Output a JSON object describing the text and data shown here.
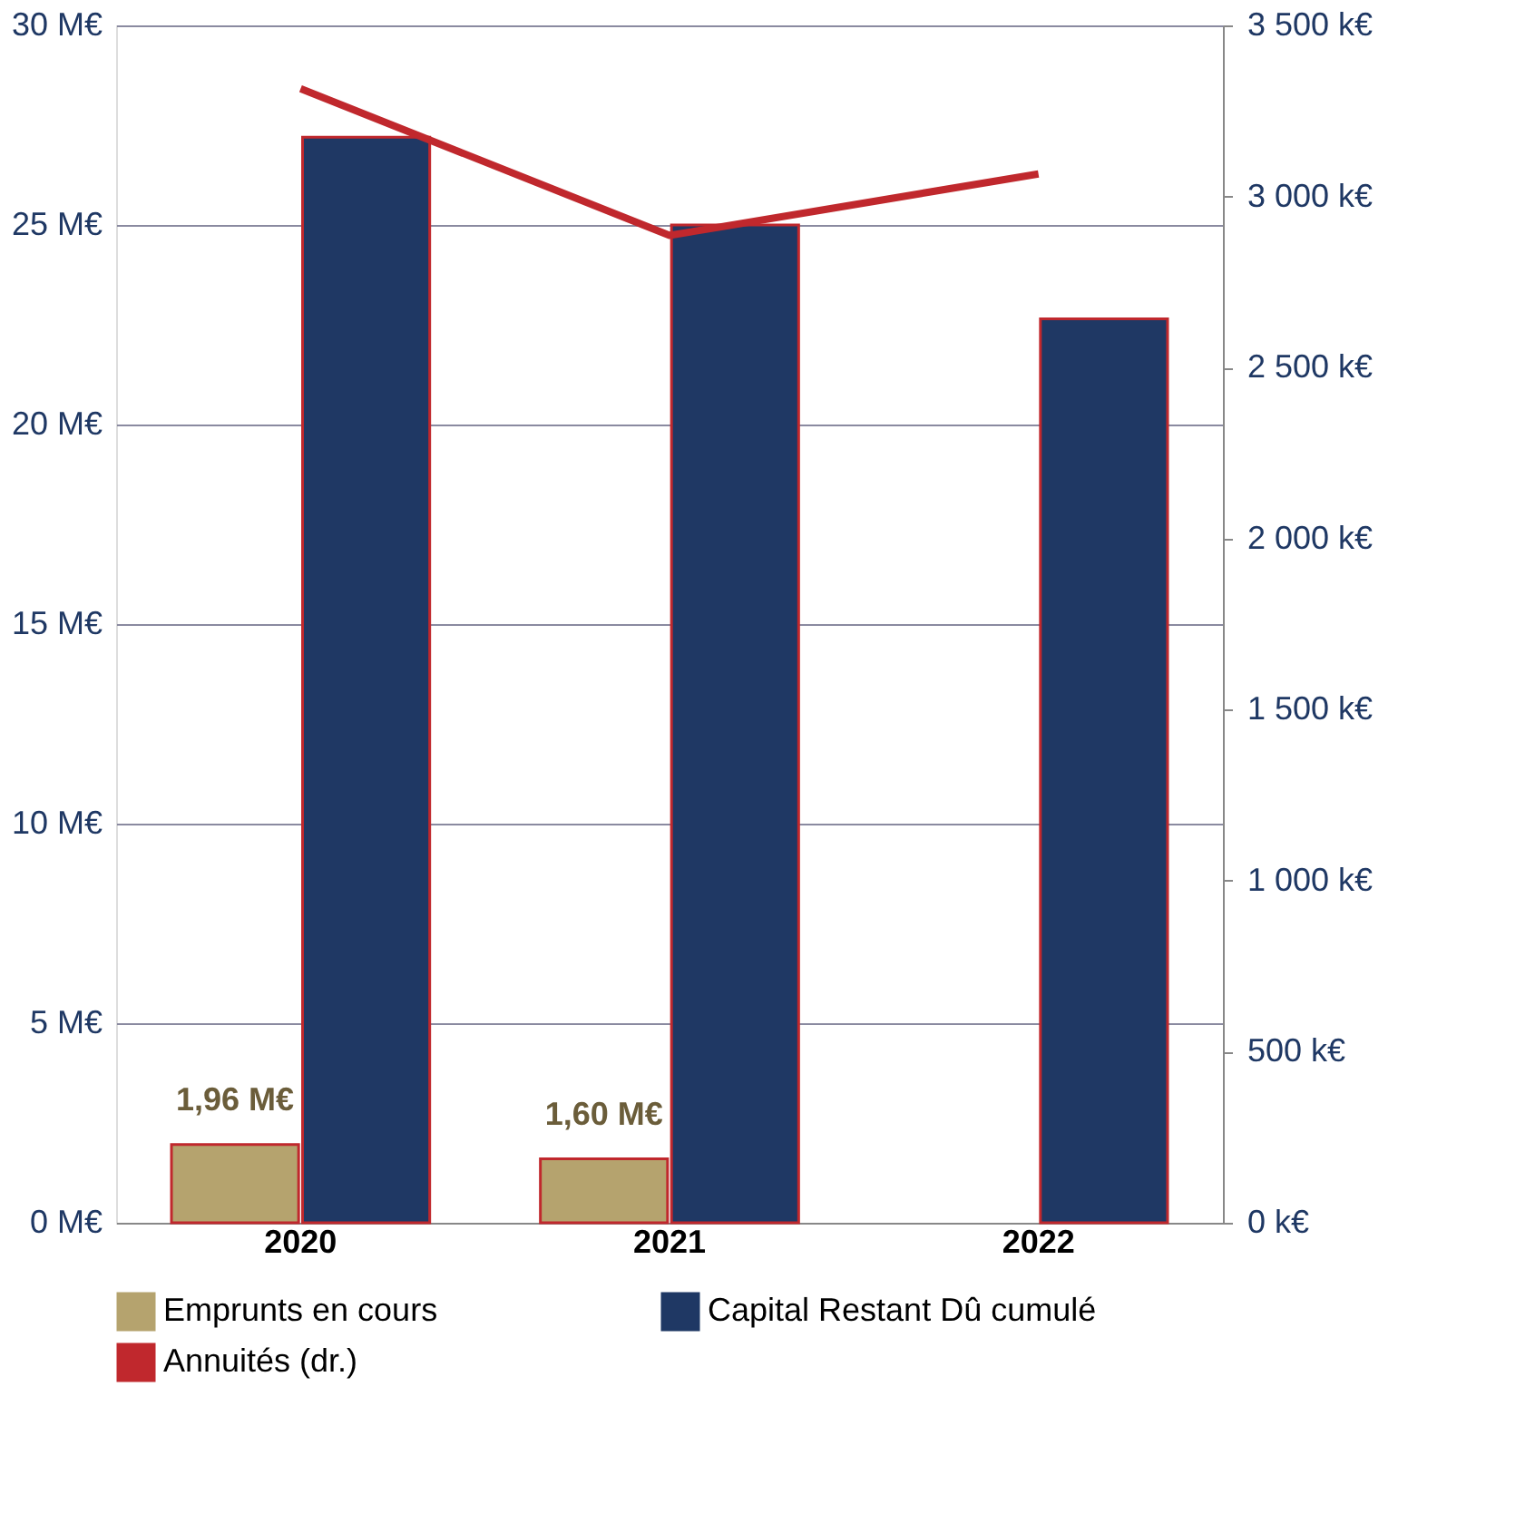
{
  "chart_data": {
    "type": "bar",
    "categories": [
      "2020",
      "2021",
      "2022"
    ],
    "series": [
      {
        "name": "Emprunts en cours",
        "color": "#b5a36e",
        "values": [
          1.96,
          1.6,
          null
        ],
        "value_labels": [
          "1,96 M€",
          "1,60 M€",
          null
        ]
      },
      {
        "name": "Capital Restant Dû cumulé",
        "color": "#1f3864",
        "values": [
          27.2,
          25.0,
          22.65
        ]
      },
      {
        "name": "Annuités (dr.)",
        "type": "line",
        "axis": "y2",
        "color": "#c0282d",
        "values": [
          3315,
          2886,
          3066
        ]
      }
    ],
    "ylim": [
      0,
      30
    ],
    "yticks": [
      {
        "value": 0,
        "label": "0 M€"
      },
      {
        "value": 5,
        "label": "5 M€"
      },
      {
        "value": 10,
        "label": "10 M€"
      },
      {
        "value": 15,
        "label": "15 M€"
      },
      {
        "value": 20,
        "label": "20 M€"
      },
      {
        "value": 25,
        "label": "25 M€"
      },
      {
        "value": 30,
        "label": "30 M€"
      }
    ],
    "y2lim": [
      0,
      3500
    ],
    "y2ticks": [
      {
        "value": 0,
        "label": "0 k€"
      },
      {
        "value": 500,
        "label": "500 k€"
      },
      {
        "value": 1000,
        "label": "1 000 k€"
      },
      {
        "value": 1500,
        "label": "1 500 k€"
      },
      {
        "value": 2000,
        "label": "2 000 k€"
      },
      {
        "value": 2500,
        "label": "2 500 k€"
      },
      {
        "value": 3000,
        "label": "3 000 k€"
      },
      {
        "value": 3500,
        "label": "3 500 k€"
      }
    ],
    "grid": "y",
    "legend": "bottom"
  }
}
